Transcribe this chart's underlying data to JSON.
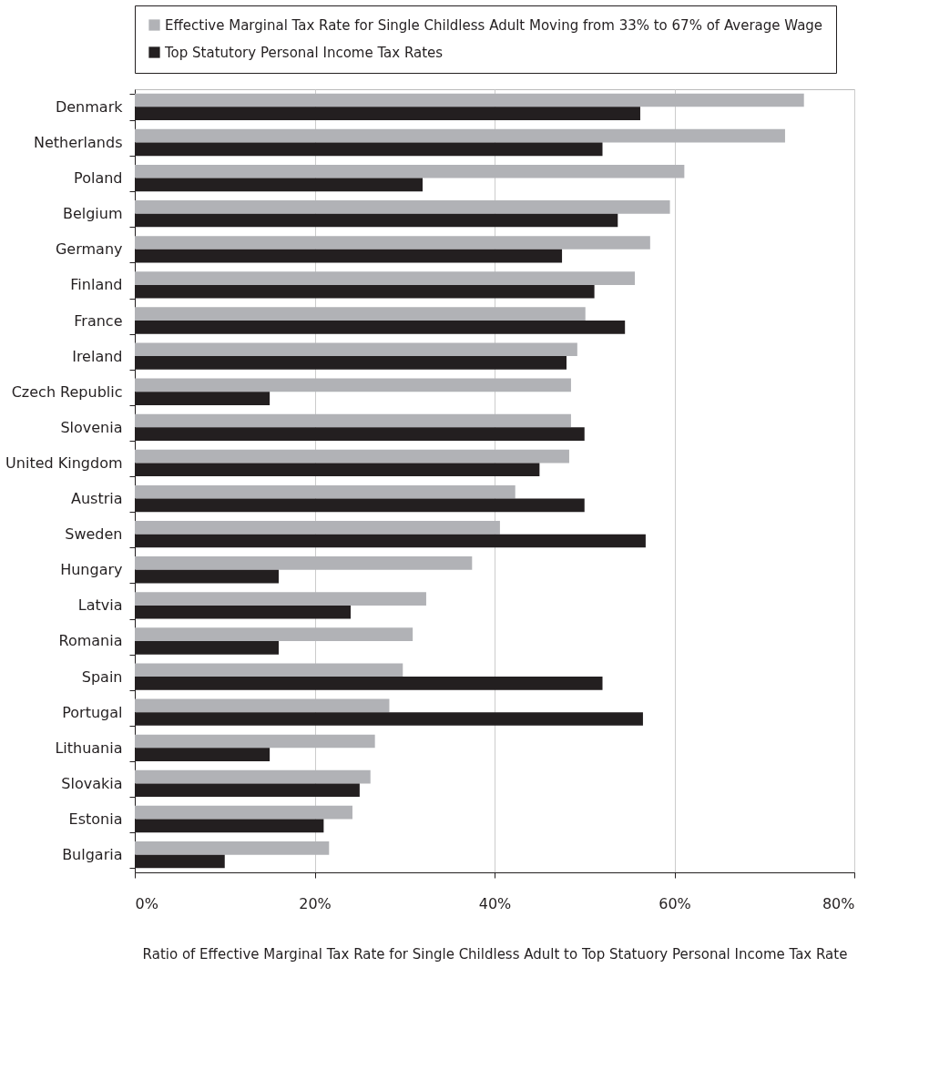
{
  "chart_data": {
    "type": "bar",
    "orientation": "horizontal",
    "categories": [
      "Denmark",
      "Netherlands",
      "Poland",
      "Belgium",
      "Germany",
      "Finland",
      "France",
      "Ireland",
      "Czech Republic",
      "Slovenia",
      "United Kingdom",
      "Austria",
      "Sweden",
      "Hungary",
      "Latvia",
      "Romania",
      "Spain",
      "Portugal",
      "Lithuania",
      "Slovakia",
      "Estonia",
      "Bulgaria"
    ],
    "series": [
      {
        "name": "Effective Marginal Tax Rate for Single Childless Adult Moving from 33% to 67% of Average Wage",
        "color": "#b1b2b6",
        "values": [
          74.4,
          72.3,
          61.1,
          59.5,
          57.3,
          55.6,
          50.1,
          49.2,
          48.5,
          48.5,
          48.3,
          42.3,
          40.6,
          37.5,
          32.4,
          30.9,
          29.8,
          28.3,
          26.7,
          26.2,
          24.2,
          21.6
        ]
      },
      {
        "name": "Top Statutory Personal Income Tax Rates",
        "color": "#231f20",
        "values": [
          56.2,
          52.0,
          32.0,
          53.7,
          47.5,
          51.1,
          54.5,
          48.0,
          15.0,
          50.0,
          45.0,
          50.0,
          56.8,
          16.0,
          24.0,
          16.0,
          52.0,
          56.5,
          15.0,
          25.0,
          21.0,
          10.0
        ]
      }
    ],
    "xlabel": "Ratio of Effective Marginal Tax Rate for Single Childless Adult to Top Statuory Personal Income Tax Rate",
    "xlim": [
      0,
      80
    ],
    "xticks": [
      {
        "value": 0,
        "label": "0%"
      },
      {
        "value": 20,
        "label": "20%"
      },
      {
        "value": 40,
        "label": "40%"
      },
      {
        "value": 60,
        "label": "60%"
      },
      {
        "value": 80,
        "label": "80%"
      }
    ],
    "grid": "x",
    "legend": "top"
  }
}
